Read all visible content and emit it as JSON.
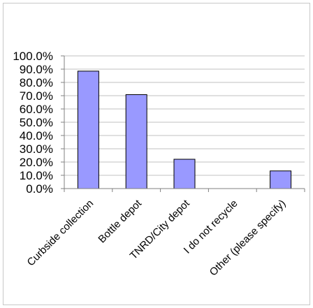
{
  "chart_data": {
    "type": "bar",
    "title": "",
    "xlabel": "",
    "ylabel": "",
    "categories": [
      "Curbside collection",
      "Bottle depot",
      "TNRD/City depot",
      "I do not recycle",
      "Other (please specify)"
    ],
    "values": [
      88.5,
      70.8,
      22.1,
      0.0,
      13.3
    ],
    "ylim": [
      0,
      100
    ],
    "yticks": [
      "0.0%",
      "10.0%",
      "20.0%",
      "30.0%",
      "40.0%",
      "50.0%",
      "60.0%",
      "70.0%",
      "80.0%",
      "90.0%",
      "100.0%"
    ],
    "grid": true,
    "legend": "none",
    "colors": {
      "bar": "#9999ff",
      "bar_edge": "#000000",
      "grid": "#c0c0c0",
      "axis": "#808080"
    }
  }
}
